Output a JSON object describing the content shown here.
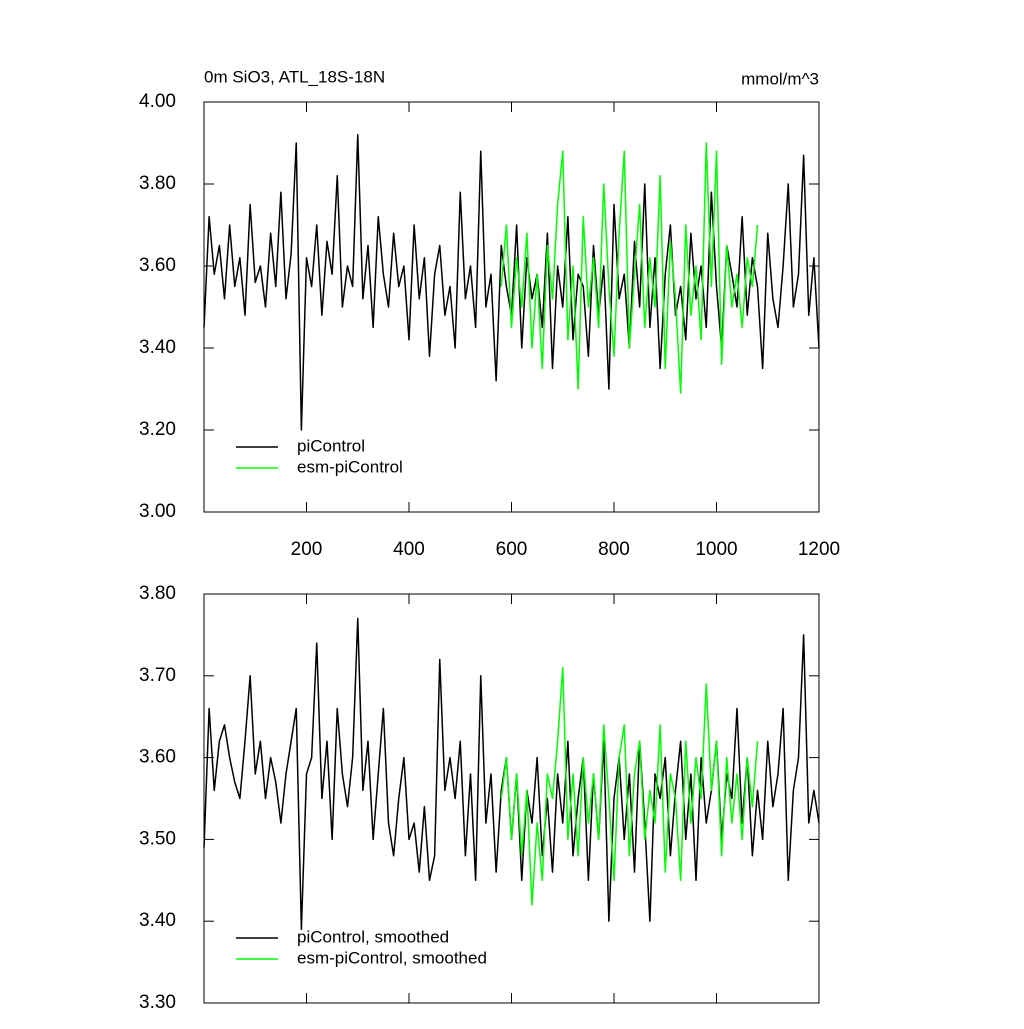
{
  "chart_data": [
    {
      "type": "line",
      "title": "0m SiO3, ATL_18S-18N",
      "units": "mmol/m^3",
      "xlim": [
        0,
        1200
      ],
      "xticks": [
        200,
        400,
        600,
        800,
        1000,
        1200
      ],
      "ylim": [
        3,
        4
      ],
      "yticks": [
        {
          "value": 3,
          "label": "3.00"
        },
        {
          "value": 3.2,
          "label": "3.20"
        },
        {
          "value": 3.4,
          "label": "3.40"
        },
        {
          "value": 3.6,
          "label": "3.60"
        },
        {
          "value": 3.8,
          "label": "3.80"
        },
        {
          "value": 4,
          "label": "4.00"
        }
      ],
      "legend": "lower left",
      "series": [
        {
          "name": "piControl",
          "color": "#000000",
          "x": [
            0,
            10,
            20,
            30,
            40,
            50,
            60,
            70,
            80,
            90,
            100,
            110,
            120,
            130,
            140,
            150,
            160,
            170,
            180,
            190,
            200,
            210,
            220,
            230,
            240,
            250,
            260,
            270,
            280,
            290,
            300,
            310,
            320,
            330,
            340,
            350,
            360,
            370,
            380,
            390,
            400,
            410,
            420,
            430,
            440,
            450,
            460,
            470,
            480,
            490,
            500,
            510,
            520,
            530,
            540,
            550,
            560,
            570,
            580,
            590,
            600,
            610,
            620,
            630,
            640,
            650,
            660,
            670,
            680,
            690,
            700,
            710,
            720,
            730,
            740,
            750,
            760,
            770,
            780,
            790,
            800,
            810,
            820,
            830,
            840,
            850,
            860,
            870,
            880,
            890,
            900,
            910,
            920,
            930,
            940,
            950,
            960,
            970,
            980,
            990,
            1000,
            1010,
            1020,
            1030,
            1040,
            1050,
            1060,
            1070,
            1080,
            1090,
            1100,
            1110,
            1120,
            1130,
            1140,
            1150,
            1160,
            1170,
            1180,
            1190,
            1200
          ],
          "values": [
            3.45,
            3.72,
            3.58,
            3.65,
            3.52,
            3.7,
            3.55,
            3.62,
            3.48,
            3.75,
            3.56,
            3.6,
            3.5,
            3.68,
            3.55,
            3.78,
            3.52,
            3.63,
            3.9,
            3.2,
            3.62,
            3.55,
            3.7,
            3.48,
            3.66,
            3.58,
            3.82,
            3.5,
            3.6,
            3.55,
            3.92,
            3.52,
            3.65,
            3.45,
            3.72,
            3.58,
            3.5,
            3.68,
            3.55,
            3.6,
            3.42,
            3.7,
            3.52,
            3.62,
            3.38,
            3.58,
            3.65,
            3.48,
            3.55,
            3.4,
            3.78,
            3.52,
            3.6,
            3.45,
            3.88,
            3.5,
            3.58,
            3.32,
            3.65,
            3.55,
            3.48,
            3.7,
            3.4,
            3.62,
            3.52,
            3.58,
            3.45,
            3.68,
            3.35,
            3.6,
            3.5,
            3.72,
            3.42,
            3.58,
            3.55,
            3.38,
            3.65,
            3.48,
            3.6,
            3.3,
            3.75,
            3.52,
            3.58,
            3.4,
            3.66,
            3.5,
            3.8,
            3.45,
            3.62,
            3.35,
            3.58,
            3.7,
            3.48,
            3.55,
            3.42,
            3.68,
            3.52,
            3.6,
            3.45,
            3.78,
            3.55,
            3.4,
            3.65,
            3.58,
            3.5,
            3.72,
            3.48,
            3.62,
            3.55,
            3.35,
            3.68,
            3.52,
            3.45,
            3.6,
            3.8,
            3.5,
            3.58,
            3.87,
            3.48,
            3.62,
            3.4
          ]
        },
        {
          "name": "esm-piControl",
          "color": "#00ff00",
          "x": [
            580,
            590,
            600,
            610,
            620,
            630,
            640,
            650,
            660,
            670,
            680,
            690,
            700,
            710,
            720,
            730,
            740,
            750,
            760,
            770,
            780,
            790,
            800,
            810,
            820,
            830,
            840,
            850,
            860,
            870,
            880,
            890,
            900,
            910,
            920,
            930,
            940,
            950,
            960,
            970,
            980,
            990,
            1000,
            1010,
            1020,
            1030,
            1040,
            1050,
            1060,
            1070,
            1080
          ],
          "values": [
            3.55,
            3.7,
            3.45,
            3.62,
            3.5,
            3.68,
            3.4,
            3.58,
            3.35,
            3.65,
            3.52,
            3.75,
            3.88,
            3.42,
            3.6,
            3.3,
            3.72,
            3.5,
            3.62,
            3.45,
            3.8,
            3.55,
            3.38,
            3.68,
            3.88,
            3.4,
            3.58,
            3.75,
            3.45,
            3.62,
            3.5,
            3.82,
            3.35,
            3.66,
            3.52,
            3.29,
            3.7,
            3.48,
            3.6,
            3.42,
            3.9,
            3.55,
            3.88,
            3.36,
            3.65,
            3.5,
            3.58,
            3.45,
            3.62,
            3.55,
            3.7
          ]
        }
      ]
    },
    {
      "type": "line",
      "xlim": [
        0,
        1200
      ],
      "ylim": [
        3.3,
        3.8
      ],
      "yticks": [
        {
          "value": 3.3,
          "label": "3.30"
        },
        {
          "value": 3.4,
          "label": "3.40"
        },
        {
          "value": 3.5,
          "label": "3.50"
        },
        {
          "value": 3.6,
          "label": "3.60"
        },
        {
          "value": 3.7,
          "label": "3.70"
        },
        {
          "value": 3.8,
          "label": "3.80"
        }
      ],
      "legend": "lower left",
      "series": [
        {
          "name": "piControl, smoothed",
          "color": "#000000",
          "x": [
            0,
            10,
            20,
            30,
            40,
            50,
            60,
            70,
            80,
            90,
            100,
            110,
            120,
            130,
            140,
            150,
            160,
            170,
            180,
            190,
            200,
            210,
            220,
            230,
            240,
            250,
            260,
            270,
            280,
            290,
            300,
            310,
            320,
            330,
            340,
            350,
            360,
            370,
            380,
            390,
            400,
            410,
            420,
            430,
            440,
            450,
            460,
            470,
            480,
            490,
            500,
            510,
            520,
            530,
            540,
            550,
            560,
            570,
            580,
            590,
            600,
            610,
            620,
            630,
            640,
            650,
            660,
            670,
            680,
            690,
            700,
            710,
            720,
            730,
            740,
            750,
            760,
            770,
            780,
            790,
            800,
            810,
            820,
            830,
            840,
            850,
            860,
            870,
            880,
            890,
            900,
            910,
            920,
            930,
            940,
            950,
            960,
            970,
            980,
            990,
            1000,
            1010,
            1020,
            1030,
            1040,
            1050,
            1060,
            1070,
            1080,
            1090,
            1100,
            1110,
            1120,
            1130,
            1140,
            1150,
            1160,
            1170,
            1180,
            1190,
            1200
          ],
          "values": [
            3.49,
            3.66,
            3.56,
            3.62,
            3.64,
            3.6,
            3.57,
            3.55,
            3.62,
            3.7,
            3.58,
            3.62,
            3.55,
            3.6,
            3.57,
            3.52,
            3.58,
            3.62,
            3.66,
            3.39,
            3.58,
            3.6,
            3.74,
            3.55,
            3.62,
            3.5,
            3.66,
            3.58,
            3.54,
            3.6,
            3.77,
            3.56,
            3.62,
            3.5,
            3.58,
            3.66,
            3.52,
            3.48,
            3.55,
            3.6,
            3.5,
            3.52,
            3.46,
            3.54,
            3.45,
            3.48,
            3.72,
            3.56,
            3.6,
            3.55,
            3.62,
            3.48,
            3.58,
            3.45,
            3.7,
            3.52,
            3.58,
            3.46,
            3.56,
            3.6,
            3.5,
            3.58,
            3.45,
            3.56,
            3.52,
            3.6,
            3.48,
            3.55,
            3.46,
            3.58,
            3.52,
            3.62,
            3.48,
            3.55,
            3.6,
            3.45,
            3.58,
            3.5,
            3.62,
            3.4,
            3.55,
            3.6,
            3.5,
            3.58,
            3.46,
            3.62,
            3.52,
            3.4,
            3.58,
            3.55,
            3.6,
            3.48,
            3.56,
            3.62,
            3.5,
            3.58,
            3.45,
            3.6,
            3.52,
            3.56,
            3.62,
            3.5,
            3.58,
            3.55,
            3.66,
            3.52,
            3.6,
            3.48,
            3.56,
            3.5,
            3.62,
            3.54,
            3.58,
            3.66,
            3.45,
            3.56,
            3.6,
            3.75,
            3.52,
            3.56,
            3.52
          ]
        },
        {
          "name": "esm-piControl, smoothed",
          "color": "#00ff00",
          "x": [
            580,
            590,
            600,
            610,
            620,
            630,
            640,
            650,
            660,
            670,
            680,
            690,
            700,
            710,
            720,
            730,
            740,
            750,
            760,
            770,
            780,
            790,
            800,
            810,
            820,
            830,
            840,
            850,
            860,
            870,
            880,
            890,
            900,
            910,
            920,
            930,
            940,
            950,
            960,
            970,
            980,
            990,
            1000,
            1010,
            1020,
            1030,
            1040,
            1050,
            1060,
            1070,
            1080
          ],
          "values": [
            3.55,
            3.6,
            3.5,
            3.58,
            3.48,
            3.56,
            3.42,
            3.52,
            3.45,
            3.58,
            3.55,
            3.62,
            3.71,
            3.5,
            3.58,
            3.48,
            3.6,
            3.52,
            3.58,
            3.5,
            3.64,
            3.55,
            3.45,
            3.6,
            3.64,
            3.48,
            3.58,
            3.62,
            3.5,
            3.56,
            3.52,
            3.64,
            3.46,
            3.58,
            3.55,
            3.45,
            3.62,
            3.52,
            3.6,
            3.55,
            3.69,
            3.56,
            3.62,
            3.48,
            3.6,
            3.52,
            3.58,
            3.5,
            3.6,
            3.54,
            3.62
          ]
        }
      ]
    }
  ]
}
